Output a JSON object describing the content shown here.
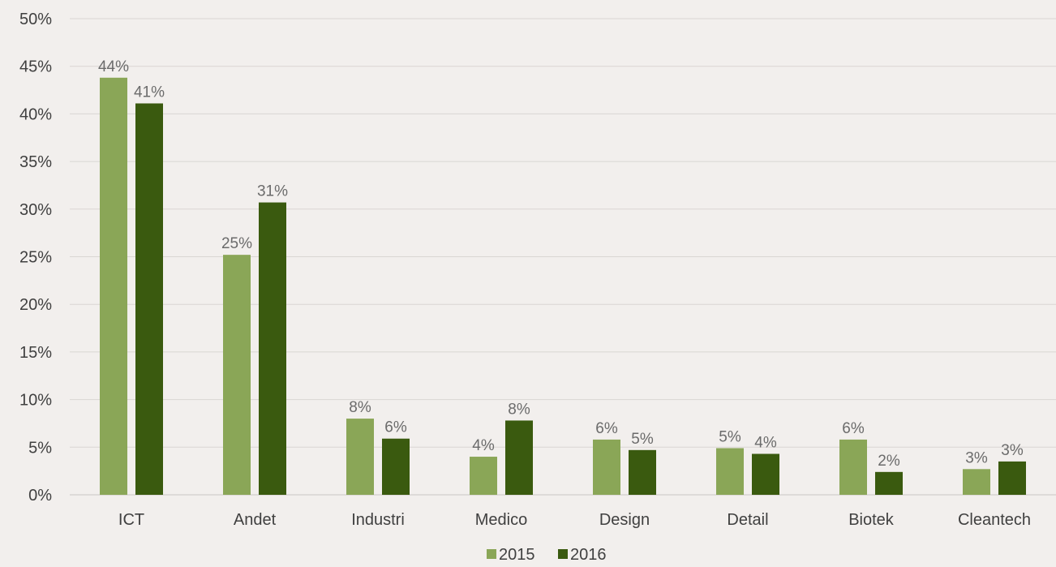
{
  "chart_data": {
    "type": "bar",
    "categories": [
      "ICT",
      "Andet",
      "Industri",
      "Medico",
      "Design",
      "Detail",
      "Biotek",
      "Cleantech"
    ],
    "series": [
      {
        "name": "2015",
        "color": "#8aa657",
        "values": [
          43.8,
          25.2,
          8.0,
          4.0,
          5.8,
          4.9,
          5.8,
          2.7
        ],
        "labels": [
          "44%",
          "25%",
          "8%",
          "4%",
          "6%",
          "5%",
          "6%",
          "3%"
        ]
      },
      {
        "name": "2016",
        "color": "#3a5a0f",
        "values": [
          41.1,
          30.7,
          5.9,
          7.8,
          4.7,
          4.3,
          2.4,
          3.5
        ],
        "labels": [
          "41%",
          "31%",
          "6%",
          "8%",
          "5%",
          "4%",
          "2%",
          "3%"
        ]
      }
    ],
    "y_ticks": [
      "0%",
      "5%",
      "10%",
      "15%",
      "20%",
      "25%",
      "30%",
      "35%",
      "40%",
      "45%",
      "50%"
    ],
    "ylim": [
      0,
      50
    ],
    "title": "",
    "xlabel": "",
    "ylabel": "",
    "grid": true,
    "legend_position": "bottom"
  }
}
